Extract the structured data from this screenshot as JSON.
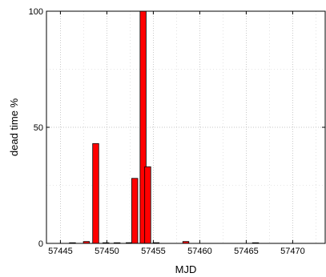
{
  "chart_data": {
    "type": "bar",
    "xlabel": "MJD",
    "ylabel": "dead time %",
    "xlim": [
      57443.5,
      57473.5
    ],
    "ylim": [
      0,
      100
    ],
    "x_ticks": [
      57445,
      57450,
      57455,
      57460,
      57465,
      57470
    ],
    "y_ticks": [
      0,
      50,
      100
    ],
    "grid": true,
    "bar_color": "#ff0000",
    "bar_edge_color": "#000000",
    "bar_width": 0.65,
    "bars": [
      {
        "x": 57446.3,
        "y": 0.2
      },
      {
        "x": 57447.8,
        "y": 0.8
      },
      {
        "x": 57448.8,
        "y": 43
      },
      {
        "x": 57449.9,
        "y": 0.2
      },
      {
        "x": 57451.1,
        "y": 0.2
      },
      {
        "x": 57452.4,
        "y": 0.3
      },
      {
        "x": 57453.0,
        "y": 28
      },
      {
        "x": 57453.9,
        "y": 100
      },
      {
        "x": 57454.4,
        "y": 33
      },
      {
        "x": 57455.3,
        "y": 0.3
      },
      {
        "x": 57458.5,
        "y": 0.8
      },
      {
        "x": 57466.0,
        "y": 0.2
      }
    ]
  }
}
